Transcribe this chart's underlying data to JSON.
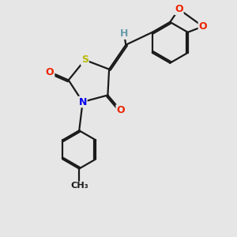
{
  "background_color": "#e6e6e6",
  "bond_color": "#1a1a1a",
  "line_width": 1.6,
  "atom_colors": {
    "S": "#b8b800",
    "N": "#0000ee",
    "O": "#ee2200",
    "H": "#6a9aaa"
  },
  "font_size": 9.0
}
